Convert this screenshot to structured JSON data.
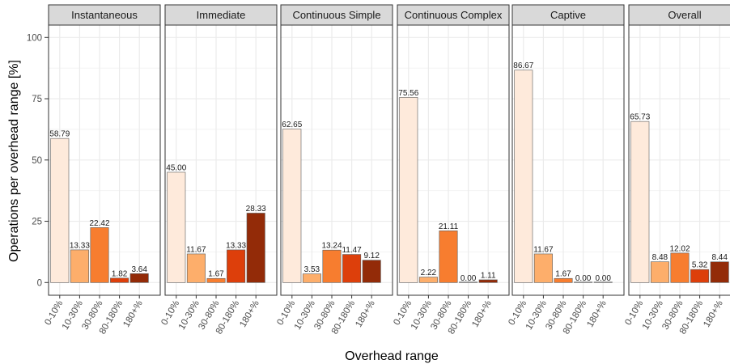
{
  "chart_data": {
    "type": "bar",
    "xlabel": "Overhead range",
    "ylabel": "Operations per overhead range [%]",
    "ylim": [
      0,
      105
    ],
    "yticks": [
      0,
      25,
      50,
      75,
      100
    ],
    "categories": [
      "0-10%",
      "10-30%",
      "30-80%",
      "80-180%",
      "180+%"
    ],
    "colors": [
      "#feeadb",
      "#fdae6b",
      "#f77d2f",
      "#dd3f0b",
      "#932b08"
    ],
    "facets": [
      {
        "name": "Instantaneous",
        "values": [
          58.79,
          13.33,
          22.42,
          1.82,
          3.64
        ],
        "labels": [
          "58.79",
          "13.33",
          "22.42",
          "1.82",
          "3.64"
        ]
      },
      {
        "name": "Immediate",
        "values": [
          45.0,
          11.67,
          1.67,
          13.33,
          28.33
        ],
        "labels": [
          "45.00",
          "11.67",
          "1.67",
          "13.33",
          "28.33"
        ]
      },
      {
        "name": "Continuous Simple",
        "values": [
          62.65,
          3.53,
          13.24,
          11.47,
          9.12
        ],
        "labels": [
          "62.65",
          "3.53",
          "13.24",
          "11.47",
          "9.12"
        ]
      },
      {
        "name": "Continuous Complex",
        "values": [
          75.56,
          2.22,
          21.11,
          0.0,
          1.11
        ],
        "labels": [
          "75.56",
          "2.22",
          "21.11",
          "0.00",
          "1.11"
        ]
      },
      {
        "name": "Captive",
        "values": [
          86.67,
          11.67,
          1.67,
          0.0,
          0.0
        ],
        "labels": [
          "86.67",
          "11.67",
          "1.67",
          "0.00",
          "0.00"
        ]
      },
      {
        "name": "Overall",
        "values": [
          65.73,
          8.48,
          12.02,
          5.32,
          8.44
        ],
        "labels": [
          "65.73",
          "8.48",
          "12.02",
          "5.32",
          "8.44"
        ]
      }
    ]
  }
}
